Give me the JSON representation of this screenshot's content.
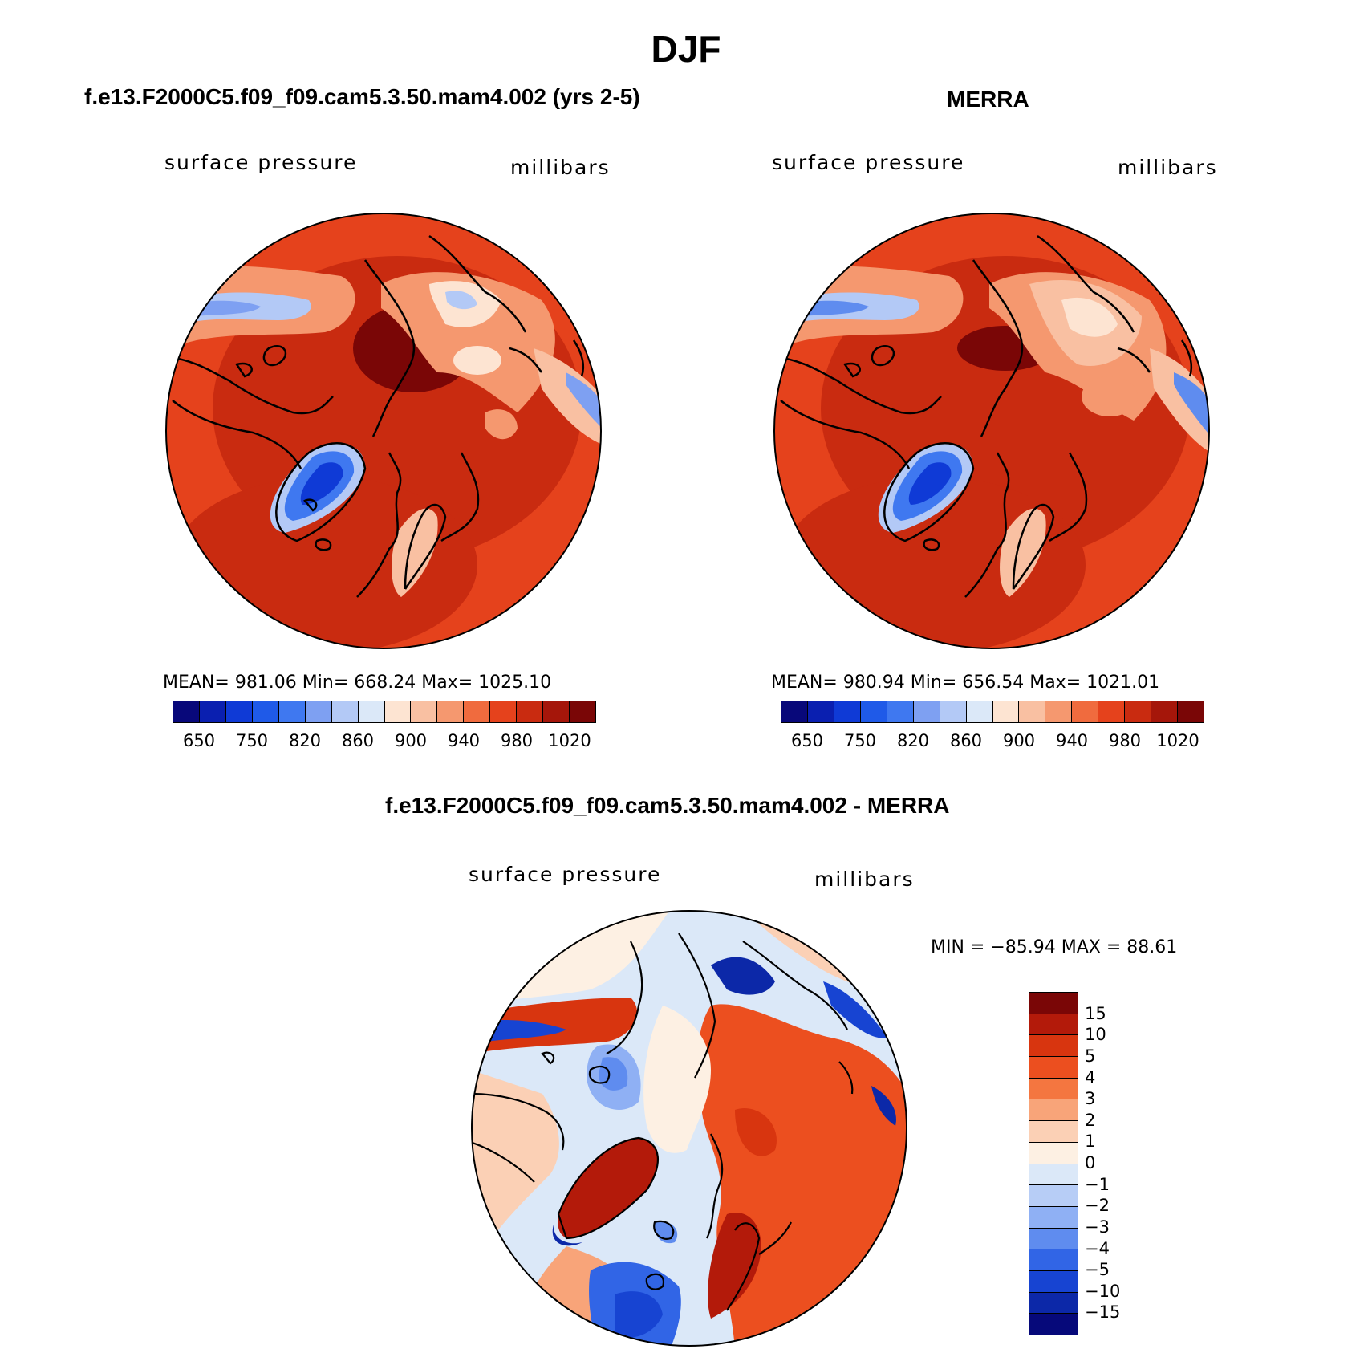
{
  "figure": {
    "title": "DJF"
  },
  "panels": {
    "model": {
      "title": "f.e13.F2000C5.f09_f09.cam5.3.50.mam4.002 (yrs 2-5)",
      "left_label": "surface pressure",
      "right_label": "millibars",
      "stats": "MEAN= 981.06   Min= 668.24   Max= 1025.10"
    },
    "obs": {
      "title": "MERRA",
      "left_label": "surface pressure",
      "right_label": "millibars",
      "stats": "MEAN= 980.94   Min= 656.54   Max= 1021.01"
    },
    "diff": {
      "title": "f.e13.F2000C5.f09_f09.cam5.3.50.mam4.002 - MERRA",
      "left_label": "surface pressure",
      "right_label": "millibars",
      "stats": "MIN = −85.94 MAX =   88.61"
    }
  },
  "colorbars": {
    "abs": {
      "colors": [
        "#08087a",
        "#0a1fb0",
        "#0f3ad6",
        "#1f5ae8",
        "#3f78f0",
        "#7ea0f2",
        "#b3c9f6",
        "#dbe8f8",
        "#fde4d2",
        "#f9c0a2",
        "#f5986f",
        "#f06b3e",
        "#e5421c",
        "#c92b10",
        "#a5160a",
        "#7a0606"
      ],
      "tick_labels": [
        "650",
        "750",
        "820",
        "860",
        "900",
        "940",
        "980",
        "1020"
      ]
    },
    "diff": {
      "colors": [
        "#7a0606",
        "#b31a0a",
        "#d8350f",
        "#ec4f1f",
        "#f47640",
        "#f8a479",
        "#fbd0b5",
        "#fdf0e3",
        "#dbe8f8",
        "#b7cdf6",
        "#8fb0f4",
        "#5f8cef",
        "#3165e6",
        "#1744d2",
        "#0c28a8",
        "#06097a"
      ],
      "tick_labels": [
        "15",
        "10",
        "5",
        "4",
        "3",
        "2",
        "1",
        "0",
        "−1",
        "−2",
        "−3",
        "−4",
        "−5",
        "−10",
        "−15"
      ]
    }
  }
}
